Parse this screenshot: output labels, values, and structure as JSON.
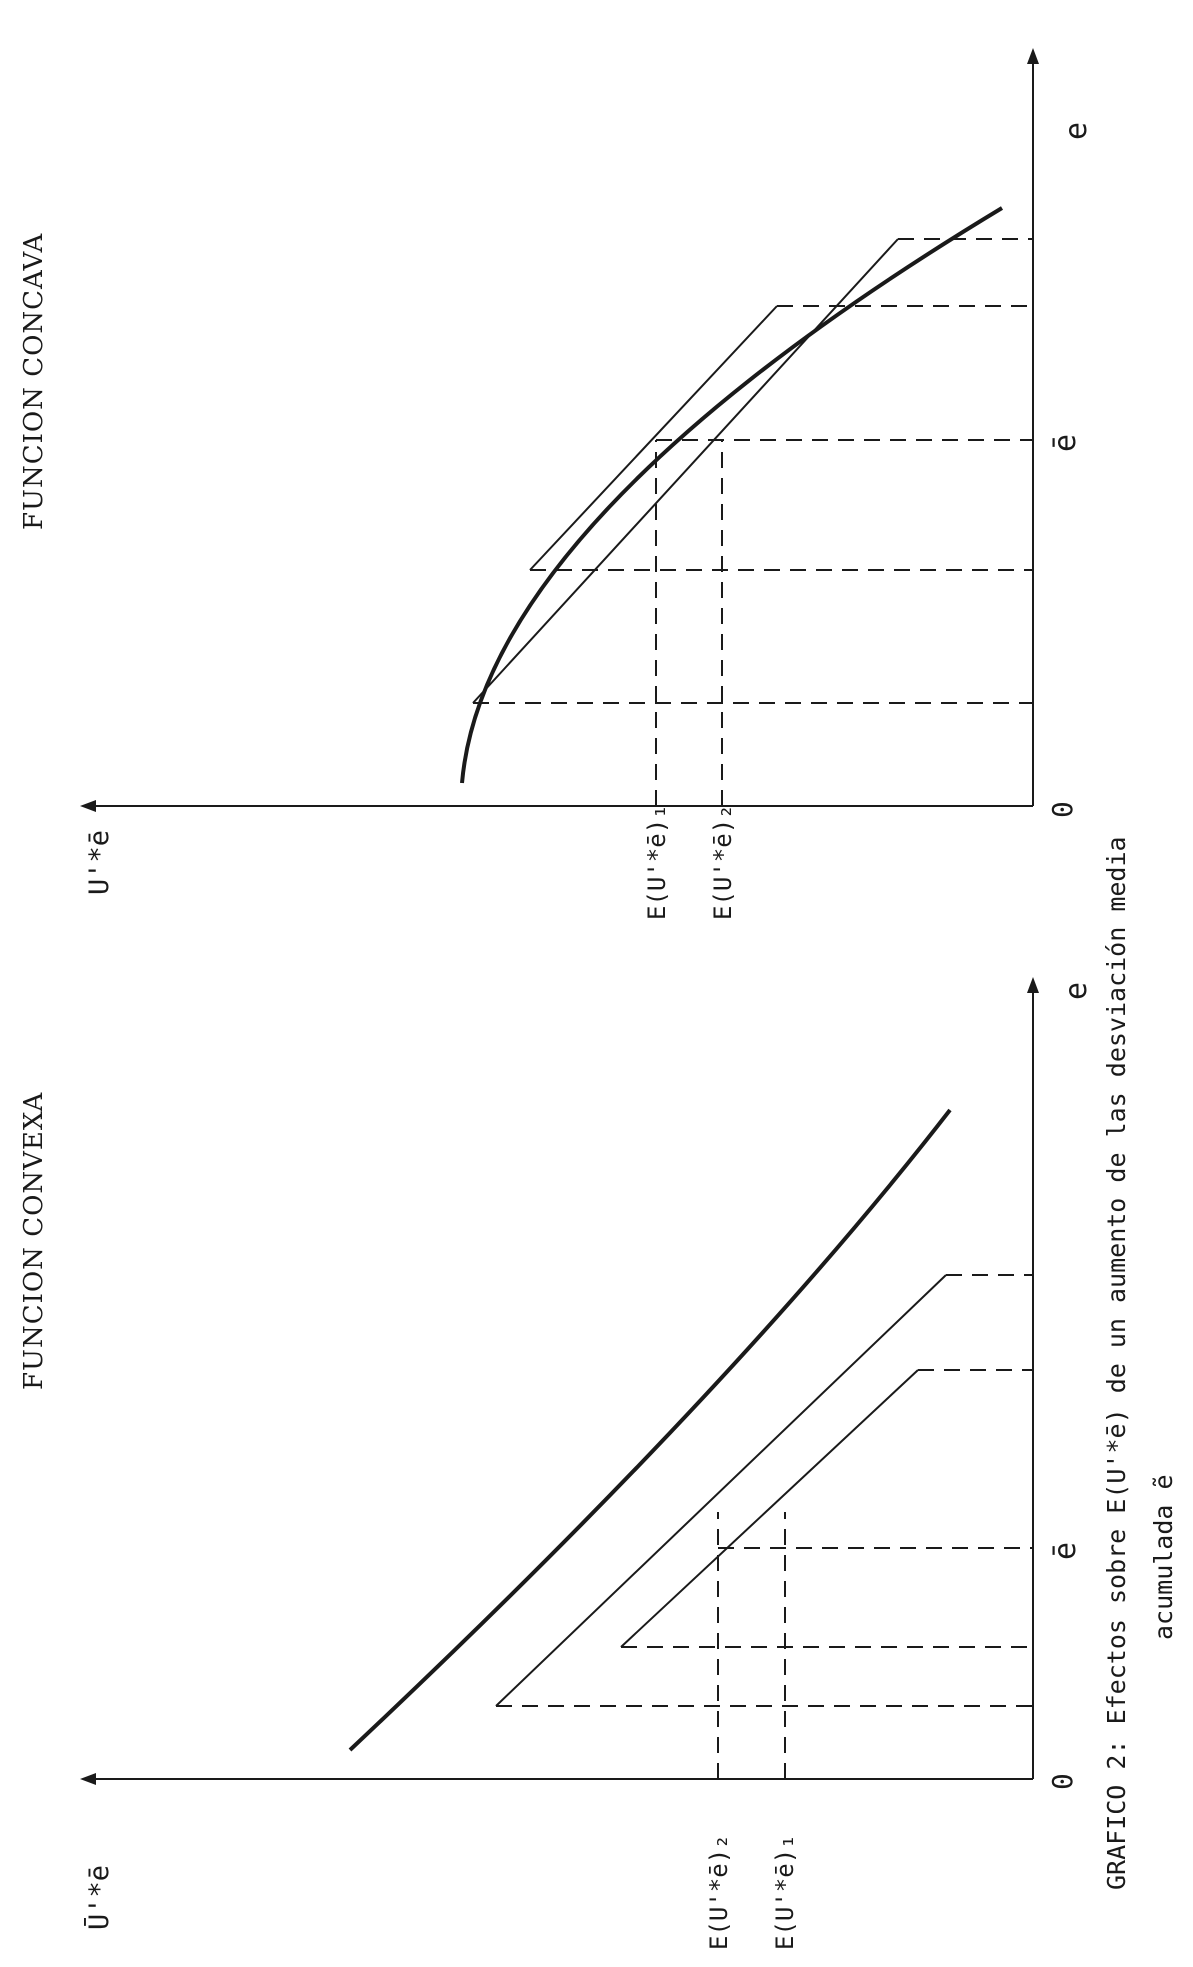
{
  "caption": {
    "line1": "GRAFICO 2: Efectos sobre E(U'*ē) de un aumento de las desviación media",
    "line2": "acumulada ẽ"
  },
  "panels": [
    {
      "title": "FUNCION CONVEXA",
      "y_axis_label": "Ū'*ē",
      "x_axis_label": "e",
      "origin_label": "0",
      "mean_label": "ē",
      "expectation_labels": [
        "E(U'*ē)₂",
        "E(U'*ē)₁"
      ]
    },
    {
      "title": "FUNCION CONCAVA",
      "y_axis_label": "U'*ē",
      "x_axis_label": "e",
      "origin_label": "0",
      "mean_label": "ē",
      "expectation_labels": [
        "E(U'*ē)₁",
        "E(U'*ē)₂"
      ]
    }
  ]
}
